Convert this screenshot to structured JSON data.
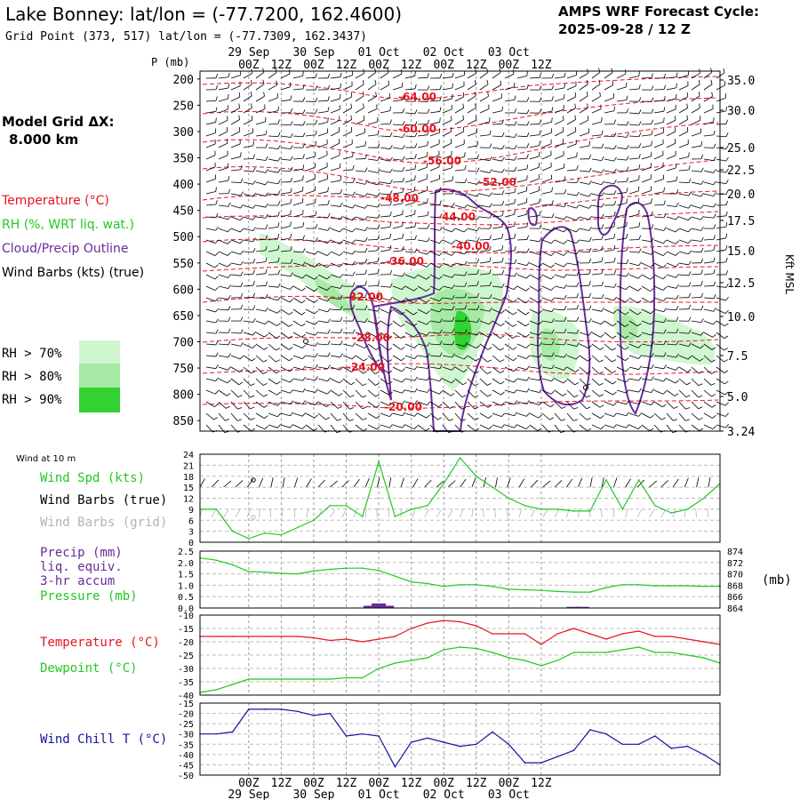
{
  "header": {
    "station_title": "Lake Bonney:  lat/lon = (-77.7200, 162.4600)",
    "grid_point": "Grid Point (373, 517) lat/lon = (-77.7309, 162.3437)",
    "cycle_title": "AMPS WRF Forecast Cycle:",
    "cycle_date": "2025-09-28 / 12  Z"
  },
  "legend": {
    "model_grid_label": "Model Grid ΔX:",
    "model_grid_value": "8.000 km",
    "temperature": "Temperature (°C)",
    "rh": "RH (%, WRT liq. wat.)",
    "cloud": "Cloud/Precip Outline",
    "wind_barbs": "Wind Barbs (kts) (true)",
    "rh70": "RH > 70%",
    "rh80": "RH > 80%",
    "rh90": "RH > 90%"
  },
  "colors": {
    "temp": "#e8141e",
    "rh": "#22c822",
    "cloud": "#6a2b9a",
    "wind_grid": "#b4b4b4",
    "chill": "#1414a0",
    "rh70": "#cff7cf",
    "rh80": "#a6eaa6",
    "rh90": "#32d232"
  },
  "chart_data": [
    {
      "type": "time-height cross-section",
      "p_axis_label": "P (mb)",
      "right_axis_label": "Kft MSL",
      "pressure_levels": [
        200,
        250,
        300,
        350,
        400,
        450,
        500,
        550,
        600,
        650,
        700,
        750,
        800,
        850
      ],
      "height_kft_ticks": [
        "35.0",
        "30.0",
        "25.0",
        "22.5",
        "20.0",
        "17.5",
        "15.0",
        "12.5",
        "10.0",
        "7.5",
        "5.0",
        "3.24"
      ],
      "time_labels": [
        "00Z",
        "12Z",
        "00Z",
        "12Z",
        "00Z",
        "12Z",
        "00Z",
        "12Z",
        "00Z",
        "12Z"
      ],
      "date_labels": [
        "29 Sep",
        "30 Sep",
        "01 Oct",
        "02 Oct",
        "03 Oct"
      ],
      "temperature_contour_labels": [
        "-64.00",
        "-60.00",
        "-56.00",
        "-52.00",
        "-48.00",
        "-44.00",
        "-40.00",
        "-36.00",
        "-32.00",
        "-28.00",
        "-24.00",
        "-20.00"
      ]
    },
    {
      "type": "line",
      "panel_note": "Wind at 10 m",
      "series_labels": [
        "Wind Spd (kts)",
        "Wind Barbs (true)",
        "Wind Barbs (grid)"
      ],
      "yticks": [
        "24",
        "21",
        "18",
        "15",
        "12",
        "9",
        "6",
        "3",
        "0"
      ],
      "x_hours": [
        -18,
        -12,
        -6,
        0,
        6,
        12,
        18,
        24,
        30,
        36,
        42,
        48,
        54,
        60,
        66,
        72,
        78,
        84,
        90,
        96,
        102,
        108,
        114,
        120,
        126,
        132,
        138,
        144,
        150,
        156,
        162,
        168,
        174
      ],
      "wind_speed_kts": [
        9,
        9,
        3,
        1,
        2.5,
        2,
        4,
        6,
        10,
        10,
        7,
        22,
        7,
        9,
        10,
        16,
        23,
        18,
        15,
        12,
        10,
        9,
        9,
        8.5,
        8.5,
        17,
        9,
        17,
        10,
        8,
        9,
        12,
        16
      ]
    },
    {
      "type": "line",
      "series_labels": [
        "Precip (mm)",
        "liq. equiv.",
        "3-hr accum",
        "Pressure (mb)"
      ],
      "units_label": "(mb)",
      "left_ticks": [
        "2.5",
        "2.0",
        "1.5",
        "1.0",
        "0.5",
        "0.0"
      ],
      "right_ticks": [
        "874",
        "872",
        "870",
        "868",
        "866",
        "864"
      ],
      "pressure_mb": [
        872.8,
        872.4,
        871.6,
        870.4,
        870.3,
        870.1,
        870.0,
        870.5,
        870.8,
        871.0,
        871.0,
        870.6,
        869.6,
        868.6,
        868.3,
        867.8,
        868.1,
        868.1,
        867.8,
        867.3,
        867.2,
        867.1,
        866.9,
        866.8,
        866.8,
        867.6,
        868.1,
        868.1,
        867.9,
        867.9,
        867.9,
        867.8,
        867.8
      ],
      "precip_mm": [
        {
          "hour": 45,
          "mm": 0.1
        },
        {
          "hour": 48,
          "mm": 0.2
        },
        {
          "hour": 51,
          "mm": 0.1
        },
        {
          "hour": 120,
          "mm": 0.05
        },
        {
          "hour": 123,
          "mm": 0.05
        }
      ]
    },
    {
      "type": "line",
      "series_labels": [
        "Temperature (°C)",
        "Dewpoint (°C)"
      ],
      "yticks": [
        "-10",
        "-15",
        "-20",
        "-25",
        "-30",
        "-35",
        "-40"
      ],
      "temperature_c": [
        -18,
        -18,
        -18,
        -18,
        -18,
        -18,
        -18,
        -18.5,
        -19.5,
        -19,
        -20,
        -19,
        -18,
        -15,
        -13,
        -12,
        -12.5,
        -14,
        -17,
        -17,
        -17,
        -21,
        -17,
        -15,
        -17,
        -19,
        -17,
        -16,
        -18,
        -18,
        -19,
        -20,
        -21
      ],
      "dewpoint_c": [
        -39,
        -38,
        -36,
        -34,
        -34,
        -34,
        -34,
        -34,
        -34,
        -33.5,
        -33.5,
        -30,
        -28,
        -27,
        -26,
        -23,
        -22,
        -22.5,
        -24,
        -26,
        -27,
        -29,
        -27,
        -24,
        -24,
        -24,
        -23,
        -22,
        -24,
        -24,
        -25,
        -26,
        -28
      ]
    },
    {
      "type": "line",
      "series_labels": [
        "Wind Chill T (°C)"
      ],
      "yticks": [
        "-15",
        "-20",
        "-25",
        "-30",
        "-35",
        "-40",
        "-45",
        "-50"
      ],
      "wind_chill_c": [
        -30,
        -30,
        -29,
        -18,
        -18,
        -18,
        -19,
        -21,
        -20,
        -31,
        -30,
        -31,
        -46,
        -34,
        -32,
        -34,
        -36,
        -35,
        -29,
        -35,
        -44,
        -44,
        -41,
        -38,
        -28,
        -30,
        -35,
        -35,
        -31,
        -37,
        -36,
        -40,
        -45
      ]
    }
  ],
  "bottom_axis": {
    "time_labels": [
      "00Z",
      "12Z",
      "00Z",
      "12Z",
      "00Z",
      "12Z",
      "00Z",
      "12Z",
      "00Z",
      "12Z"
    ],
    "date_labels": [
      "29 Sep",
      "30 Sep",
      "01 Oct",
      "02 Oct",
      "03 Oct"
    ]
  }
}
